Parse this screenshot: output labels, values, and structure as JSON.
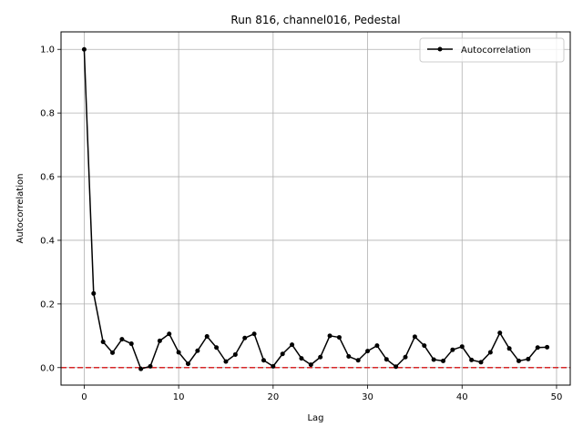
{
  "chart_data": {
    "type": "line",
    "title": "Run 816, channel016, Pedestal",
    "xlabel": "Lag",
    "ylabel": "Autocorrelation",
    "xlim": [
      -2.45,
      51.45
    ],
    "ylim": [
      -0.055,
      1.055
    ],
    "xticks": [
      0,
      10,
      20,
      30,
      40,
      50
    ],
    "yticks": [
      0.0,
      0.2,
      0.4,
      0.6,
      0.8,
      1.0
    ],
    "xtick_labels": [
      "0",
      "10",
      "20",
      "30",
      "40",
      "50"
    ],
    "ytick_labels": [
      "0.0",
      "0.2",
      "0.4",
      "0.6",
      "0.8",
      "1.0"
    ],
    "grid": true,
    "legend_position": "top-right",
    "reference_line": {
      "y": 0.0,
      "style": "dashed",
      "color": "#d62728"
    },
    "series": [
      {
        "name": "Autocorrelation",
        "color": "#000000",
        "marker": "dot",
        "x": [
          0,
          1,
          2,
          3,
          4,
          5,
          6,
          7,
          8,
          9,
          10,
          11,
          12,
          13,
          14,
          15,
          16,
          17,
          18,
          19,
          20,
          21,
          22,
          23,
          24,
          25,
          26,
          27,
          28,
          29,
          30,
          31,
          32,
          33,
          34,
          35,
          36,
          37,
          38,
          39,
          40,
          41,
          42,
          43,
          44,
          45,
          46,
          47,
          48,
          49
        ],
        "y": [
          1.0,
          0.233,
          0.081,
          0.047,
          0.089,
          0.075,
          -0.004,
          0.004,
          0.084,
          0.106,
          0.048,
          0.012,
          0.053,
          0.098,
          0.063,
          0.019,
          0.041,
          0.093,
          0.106,
          0.023,
          0.004,
          0.043,
          0.072,
          0.029,
          0.009,
          0.033,
          0.1,
          0.095,
          0.035,
          0.023,
          0.052,
          0.069,
          0.026,
          0.003,
          0.033,
          0.097,
          0.069,
          0.025,
          0.021,
          0.056,
          0.066,
          0.024,
          0.017,
          0.048,
          0.109,
          0.06,
          0.021,
          0.027,
          0.063,
          0.064
        ]
      }
    ]
  }
}
